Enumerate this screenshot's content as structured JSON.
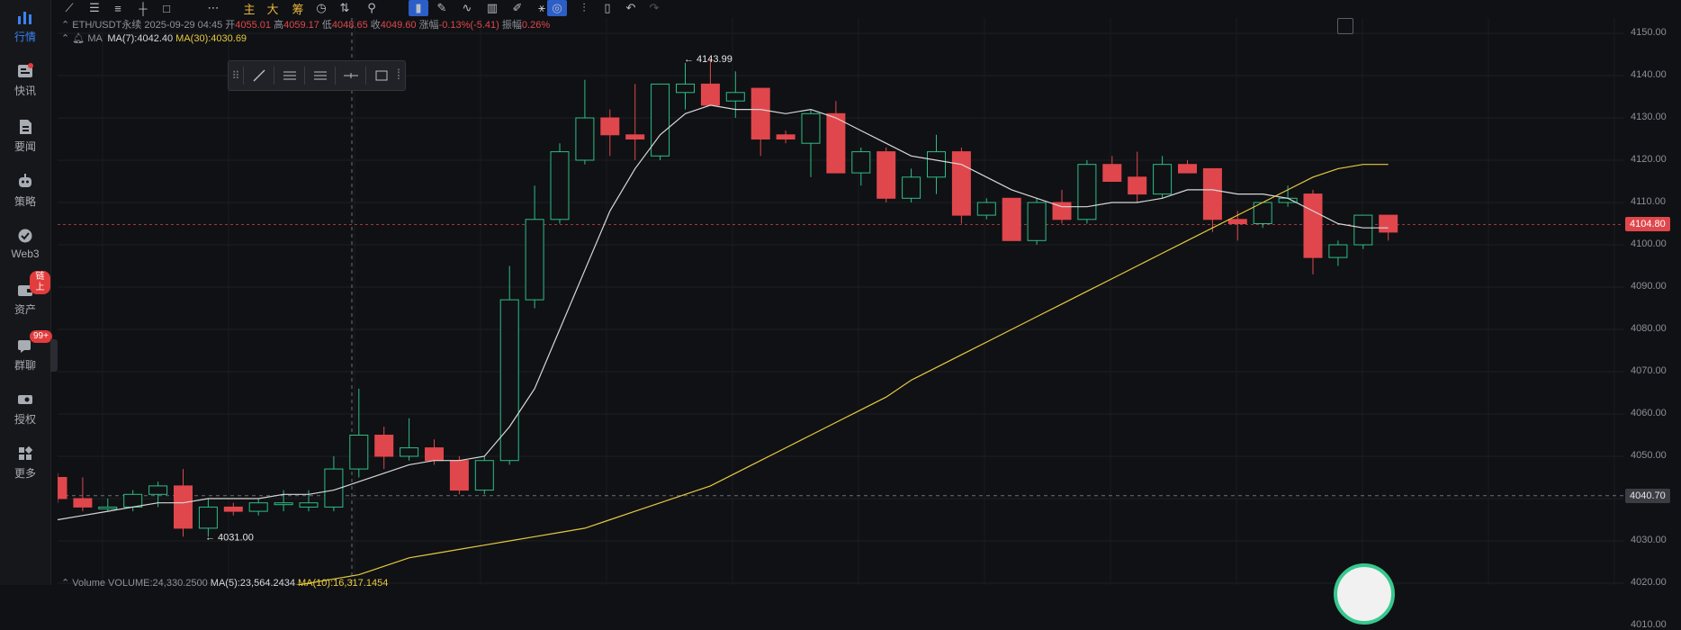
{
  "sidebar": {
    "items": [
      {
        "label": "行情",
        "icon": "bar-chart-icon",
        "active": true
      },
      {
        "label": "快讯",
        "icon": "news-icon"
      },
      {
        "label": "要闻",
        "icon": "document-icon"
      },
      {
        "label": "策略",
        "icon": "robot-icon"
      },
      {
        "label": "Web3",
        "icon": "globe-icon"
      },
      {
        "label": "资产",
        "icon": "wallet-icon",
        "badge": "链上"
      },
      {
        "label": "群聊",
        "icon": "chat-icon",
        "badge": "99+"
      },
      {
        "label": "授权",
        "icon": "key-icon"
      },
      {
        "label": "更多",
        "icon": "grid-icon"
      }
    ]
  },
  "toolbar": {
    "tools": [
      "line-tool-icon",
      "horizontal-lines-icon",
      "parallel-lines-icon",
      "crosshair-icon",
      "rectangle-icon",
      "more-dots-icon",
      "主",
      "大",
      "筹",
      "alarm-clock-icon",
      "long-short-icon",
      "pattern-icon",
      "bookmark-icon",
      "brush-icon",
      "measure-icon",
      "basket-icon",
      "notes-icon",
      "magnet-icon",
      "tuning-icon",
      "delete-icon",
      "undo-icon",
      "redo-icon"
    ],
    "labels": {
      "main": "主",
      "big": "大",
      "chips": "筹"
    }
  },
  "info": {
    "symbol": "ETH/USDT永续",
    "datetime": "2025-09-29 04:45",
    "open_label": "开",
    "open": "4055.01",
    "high_label": "高",
    "high": "4059.17",
    "low_label": "低",
    "low": "4048.65",
    "close_label": "收",
    "close": "4049.60",
    "change_label": "涨幅",
    "change": "-0.13%(-5.41)",
    "amplitude_label": "振幅",
    "amplitude": "0.26%"
  },
  "ma": {
    "label": "MA",
    "ma7": "MA(7):4042.40",
    "ma30": "MA(30):4030.69"
  },
  "volume": {
    "label": "Volume",
    "value": "VOLUME:24,330.2500",
    "ma5": "MA(5):23,564.2434",
    "ma10": "MA(10):16,317.1454"
  },
  "annotations": {
    "high_marker": "← 4143.99",
    "low_marker": "← 4031.00"
  },
  "price_axis": {
    "ticks": [
      "4150.00",
      "4140.00",
      "4130.00",
      "4120.00",
      "4110.00",
      "4100.00",
      "4090.00",
      "4080.00",
      "4070.00",
      "4060.00",
      "4050.00",
      "4040.00",
      "4030.00",
      "4020.00",
      "4010.00"
    ],
    "current_price": "4104.80",
    "crosshair_price": "4040.70"
  },
  "colors": {
    "up": "#2dbd85",
    "down": "#e0474c",
    "ma7": "#d8d8d8",
    "ma30": "#e6c940",
    "accent": "#2c5ec8"
  },
  "chart_data": {
    "type": "candlestick",
    "symbol": "ETH/USDT永续",
    "ylim": [
      4005,
      4155
    ],
    "candles": [
      {
        "o": 4045,
        "h": 4046,
        "l": 4039,
        "c": 4040
      },
      {
        "o": 4040,
        "h": 4045,
        "l": 4037,
        "c": 4038
      },
      {
        "o": 4038,
        "h": 4040,
        "l": 4037,
        "c": 4038
      },
      {
        "o": 4038,
        "h": 4042,
        "l": 4037,
        "c": 4041
      },
      {
        "o": 4041,
        "h": 4044,
        "l": 4038,
        "c": 4043
      },
      {
        "o": 4043,
        "h": 4047,
        "l": 4031,
        "c": 4033
      },
      {
        "o": 4033,
        "h": 4040,
        "l": 4031,
        "c": 4038
      },
      {
        "o": 4038,
        "h": 4039,
        "l": 4036,
        "c": 4037
      },
      {
        "o": 4037,
        "h": 4040,
        "l": 4036,
        "c": 4039
      },
      {
        "o": 4039,
        "h": 4042,
        "l": 4037,
        "c": 4039
      },
      {
        "o": 4038,
        "h": 4042,
        "l": 4037,
        "c": 4039
      },
      {
        "o": 4038,
        "h": 4050,
        "l": 4037,
        "c": 4047
      },
      {
        "o": 4047,
        "h": 4066,
        "l": 4045,
        "c": 4055
      },
      {
        "o": 4055,
        "h": 4057,
        "l": 4047,
        "c": 4050
      },
      {
        "o": 4050,
        "h": 4059,
        "l": 4049,
        "c": 4052
      },
      {
        "o": 4052,
        "h": 4054,
        "l": 4048,
        "c": 4049
      },
      {
        "o": 4049,
        "h": 4050,
        "l": 4041,
        "c": 4042
      },
      {
        "o": 4042,
        "h": 4050,
        "l": 4041,
        "c": 4049
      },
      {
        "o": 4049,
        "h": 4095,
        "l": 4048,
        "c": 4087
      },
      {
        "o": 4087,
        "h": 4114,
        "l": 4085,
        "c": 4106
      },
      {
        "o": 4106,
        "h": 4124,
        "l": 4105,
        "c": 4122
      },
      {
        "o": 4120,
        "h": 4139,
        "l": 4119,
        "c": 4130
      },
      {
        "o": 4130,
        "h": 4132,
        "l": 4121,
        "c": 4126
      },
      {
        "o": 4126,
        "h": 4138,
        "l": 4120,
        "c": 4125
      },
      {
        "o": 4121,
        "h": 4138,
        "l": 4120,
        "c": 4138
      },
      {
        "o": 4136,
        "h": 4143,
        "l": 4132,
        "c": 4138
      },
      {
        "o": 4138,
        "h": 4144,
        "l": 4133,
        "c": 4133
      },
      {
        "o": 4134,
        "h": 4141,
        "l": 4130,
        "c": 4136
      },
      {
        "o": 4137,
        "h": 4137,
        "l": 4121,
        "c": 4125
      },
      {
        "o": 4126,
        "h": 4127,
        "l": 4124,
        "c": 4125
      },
      {
        "o": 4124,
        "h": 4132,
        "l": 4116,
        "c": 4131
      },
      {
        "o": 4131,
        "h": 4134,
        "l": 4117,
        "c": 4117
      },
      {
        "o": 4117,
        "h": 4123,
        "l": 4114,
        "c": 4122
      },
      {
        "o": 4122,
        "h": 4123,
        "l": 4110,
        "c": 4111
      },
      {
        "o": 4111,
        "h": 4118,
        "l": 4110,
        "c": 4116
      },
      {
        "o": 4116,
        "h": 4126,
        "l": 4112,
        "c": 4122
      },
      {
        "o": 4122,
        "h": 4123,
        "l": 4105,
        "c": 4107
      },
      {
        "o": 4107,
        "h": 4111,
        "l": 4106,
        "c": 4110
      },
      {
        "o": 4111,
        "h": 4111,
        "l": 4101,
        "c": 4101
      },
      {
        "o": 4101,
        "h": 4111,
        "l": 4100,
        "c": 4110
      },
      {
        "o": 4110,
        "h": 4113,
        "l": 4105,
        "c": 4106
      },
      {
        "o": 4106,
        "h": 4120,
        "l": 4105,
        "c": 4119
      },
      {
        "o": 4119,
        "h": 4121,
        "l": 4115,
        "c": 4115
      },
      {
        "o": 4116,
        "h": 4122,
        "l": 4110,
        "c": 4112
      },
      {
        "o": 4112,
        "h": 4121,
        "l": 4111,
        "c": 4119
      },
      {
        "o": 4119,
        "h": 4120,
        "l": 4117,
        "c": 4117
      },
      {
        "o": 4118,
        "h": 4118,
        "l": 4103,
        "c": 4106
      },
      {
        "o": 4106,
        "h": 4108,
        "l": 4101,
        "c": 4105
      },
      {
        "o": 4105,
        "h": 4110,
        "l": 4104,
        "c": 4110
      },
      {
        "o": 4110,
        "h": 4114,
        "l": 4109,
        "c": 4111
      },
      {
        "o": 4112,
        "h": 4113,
        "l": 4093,
        "c": 4097
      },
      {
        "o": 4097,
        "h": 4101,
        "l": 4095,
        "c": 4100
      },
      {
        "o": 4100,
        "h": 4107,
        "l": 4099,
        "c": 4107
      },
      {
        "o": 4107,
        "h": 4107,
        "l": 4101,
        "c": 4103
      }
    ],
    "ma7": [
      4035,
      4036,
      4037,
      4038,
      4039,
      4039,
      4040,
      4040,
      4040,
      4041,
      4041,
      4042,
      4044,
      4046,
      4048,
      4049,
      4049,
      4050,
      4057,
      4066,
      4080,
      4094,
      4108,
      4118,
      4126,
      4131,
      4133,
      4132,
      4132,
      4131,
      4132,
      4130,
      4127,
      4124,
      4121,
      4120,
      4119,
      4116,
      4113,
      4111,
      4109,
      4109,
      4110,
      4110,
      4111,
      4113,
      4113,
      4112,
      4112,
      4111,
      4108,
      4105,
      4104,
      4104
    ],
    "ma30": [
      4010,
      4011,
      4012,
      4013,
      4014,
      4015,
      4016,
      4017,
      4018,
      4019,
      4020,
      4021,
      4022,
      4024,
      4026,
      4027,
      4028,
      4029,
      4030,
      4031,
      4032,
      4033,
      4035,
      4037,
      4039,
      4041,
      4043,
      4046,
      4049,
      4052,
      4055,
      4058,
      4061,
      4064,
      4068,
      4071,
      4074,
      4077,
      4080,
      4083,
      4086,
      4089,
      4092,
      4095,
      4098,
      4101,
      4104,
      4107,
      4110,
      4113,
      4116,
      4118,
      4119,
      4119
    ],
    "current_price": 4104.8,
    "crosshair_price": 4040.7,
    "high_marker": 4143.99,
    "low_marker": 4031.0
  }
}
